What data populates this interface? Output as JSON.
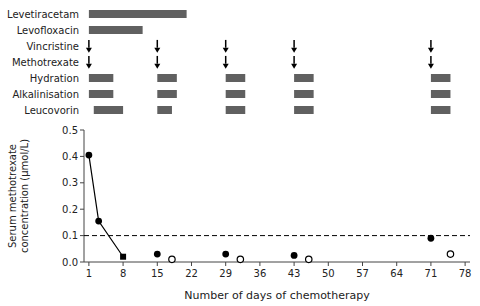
{
  "chart_data": [
    {
      "type": "gantt",
      "categories": [
        "Levetiracetam",
        "Levofloxacin",
        "Vincristine",
        "Methotrexate",
        "Hydration",
        "Alkalinisation",
        "Leucovorin"
      ],
      "xlim": [
        0,
        79
      ],
      "tick_labels": "y",
      "series": [
        {
          "type": "bar",
          "color": "#606060",
          "values": [
            [
              [
                1,
                21
              ]
            ],
            [
              [
                1,
                12
              ]
            ],
            null,
            null,
            [
              [
                1,
                6
              ],
              [
                15,
                19
              ],
              [
                29,
                33
              ],
              [
                43,
                47
              ],
              [
                71,
                75
              ]
            ],
            [
              [
                1,
                6
              ],
              [
                15,
                19
              ],
              [
                29,
                33
              ],
              [
                43,
                47
              ],
              [
                71,
                75
              ]
            ],
            [
              [
                2,
                8
              ],
              [
                15,
                18
              ],
              [
                29,
                33
              ],
              [
                43,
                47
              ],
              [
                71,
                75
              ]
            ]
          ]
        },
        {
          "type": "arrow",
          "color": "#000000",
          "values": [
            null,
            null,
            [
              1,
              15,
              29,
              43,
              71
            ],
            [
              1,
              15,
              29,
              43,
              71
            ],
            null,
            null,
            null
          ]
        }
      ]
    },
    {
      "type": "scatter",
      "xlabel": "Number of days of chemotherapy",
      "ylabel": "Serum methotrexate\nconcentration (μmol/L)",
      "xlim": [
        0,
        79
      ],
      "ylim": [
        0,
        0.5
      ],
      "xticks": [
        1,
        8,
        15,
        22,
        29,
        36,
        43,
        50,
        57,
        64,
        71,
        78
      ],
      "yticks": [
        {
          "value": 0.0,
          "label": "0.0"
        },
        0.1,
        0.2,
        0.3,
        0.4,
        0.5
      ],
      "series": [
        {
          "type": "line",
          "marker": "none",
          "line_style": "solid",
          "color": "#000000",
          "x": [
            1,
            3,
            8
          ],
          "values": [
            0.405,
            0.155,
            0.02
          ]
        },
        {
          "type": "scatter",
          "marker": "circle",
          "color": "#000000",
          "x": [
            1,
            3,
            15,
            29,
            43,
            71
          ],
          "values": [
            0.405,
            0.155,
            0.03,
            0.03,
            0.025,
            0.09
          ]
        },
        {
          "type": "scatter",
          "marker": "square",
          "color": "#000000",
          "x": [
            8
          ],
          "values": [
            0.02
          ]
        },
        {
          "type": "scatter",
          "marker": "open-circle",
          "color": "#000000",
          "x": [
            18,
            32,
            46,
            75
          ],
          "values": [
            0.01,
            0.01,
            0.01,
            0.03
          ]
        },
        {
          "type": "hline",
          "line_style": "dashed",
          "color": "#000000",
          "values": [
            0.1
          ]
        }
      ]
    }
  ]
}
